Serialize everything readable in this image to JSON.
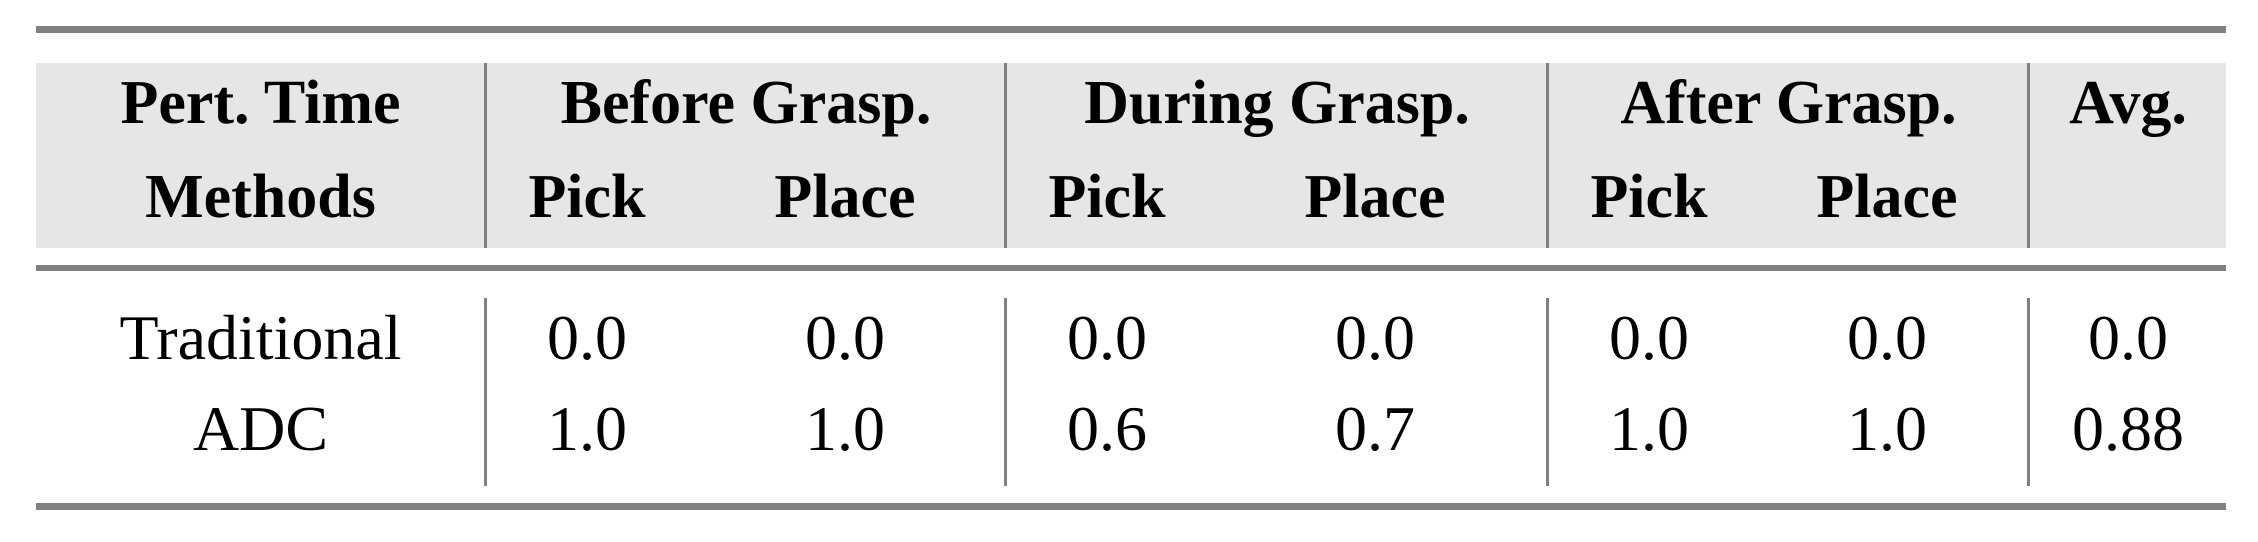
{
  "table": {
    "header_row1": {
      "first": "Pert. Time",
      "groups": [
        "Before Grasp.",
        "During Grasp.",
        "After Grasp."
      ],
      "avg": "Avg."
    },
    "header_row2": {
      "first": "Methods",
      "subcols": [
        "Pick",
        "Place",
        "Pick",
        "Place",
        "Pick",
        "Place"
      ]
    },
    "rows": [
      {
        "method": "Traditional",
        "values": [
          "0.0",
          "0.0",
          "0.0",
          "0.0",
          "0.0",
          "0.0"
        ],
        "avg": "0.0"
      },
      {
        "method": "ADC",
        "values": [
          "1.0",
          "1.0",
          "0.6",
          "0.7",
          "1.0",
          "1.0"
        ],
        "avg": "0.88"
      }
    ]
  },
  "colors": {
    "header_bg": "#e6e6e6",
    "rule": "#808080"
  }
}
